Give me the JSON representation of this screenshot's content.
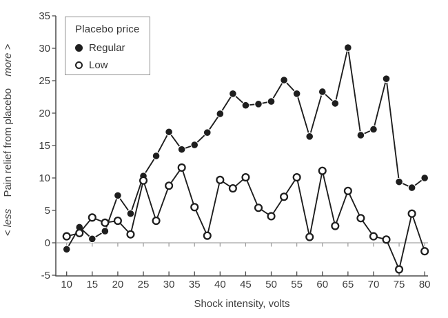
{
  "figure": {
    "x_axis_title": "Shock intensity, volts",
    "y_axis_title": {
      "prefix": "< less",
      "main": "Pain relief from placebo",
      "suffix": "more >"
    },
    "legend": {
      "title": "Placebo price",
      "items": [
        {
          "label": "Regular",
          "marker": "filled-circle"
        },
        {
          "label": "Low",
          "marker": "open-circle"
        }
      ]
    }
  },
  "chart_data": {
    "type": "line",
    "x": [
      10,
      12.5,
      15,
      17.5,
      20,
      22.5,
      25,
      27.5,
      30,
      32.5,
      35,
      37.5,
      40,
      42.5,
      45,
      47.5,
      50,
      52.5,
      55,
      57.5,
      60,
      62.5,
      65,
      67.5,
      70,
      72.5,
      75,
      77.5,
      80
    ],
    "series": [
      {
        "name": "Regular",
        "marker": "filled-circle",
        "values": [
          -1.0,
          2.4,
          0.6,
          1.8,
          7.3,
          4.5,
          10.3,
          13.4,
          17.1,
          14.4,
          15.1,
          17.0,
          19.9,
          23.0,
          21.2,
          21.4,
          21.8,
          25.1,
          23.0,
          16.4,
          23.3,
          21.5,
          30.1,
          16.6,
          17.5,
          25.3,
          9.4,
          8.5,
          10.0
        ]
      },
      {
        "name": "Low",
        "marker": "open-circle",
        "values": [
          1.0,
          1.5,
          3.9,
          3.1,
          3.4,
          1.3,
          9.6,
          3.4,
          8.8,
          11.6,
          5.5,
          1.1,
          9.7,
          8.4,
          10.1,
          5.4,
          4.1,
          7.1,
          10.1,
          0.9,
          11.1,
          2.6,
          8.0,
          3.8,
          1.0,
          0.5,
          -4.1,
          4.5,
          -1.3
        ]
      }
    ],
    "title": "",
    "xlabel": "Shock intensity, volts",
    "ylabel": "< less  Pain relief from placebo  more >",
    "x_ticks": [
      10,
      15,
      20,
      25,
      30,
      35,
      40,
      45,
      50,
      55,
      60,
      65,
      70,
      75,
      80
    ],
    "y_ticks": [
      -5,
      0,
      5,
      10,
      15,
      20,
      25,
      30,
      35
    ],
    "xlim": [
      10,
      80
    ],
    "ylim": [
      -5,
      35
    ],
    "grid": "zero-line-only",
    "legend_position": "top-left",
    "colors": {
      "line": "#1e1e1e",
      "marker_fill": "#1e1e1e",
      "marker_open_fill": "#ffffff",
      "axis": "#4a4a4a",
      "zero_line": "#b4b4b4",
      "zero_tick": "#9a9a9a",
      "text": "#3c3c3c",
      "legend_border": "#8d8d8d",
      "background": "#ffffff"
    }
  }
}
